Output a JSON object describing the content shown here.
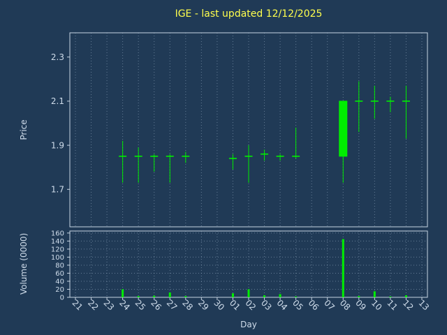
{
  "chart_data": {
    "type": "candlestick",
    "title": "IGE - last updated 12/12/2025",
    "xlabel": "Day",
    "ylabel_price": "Price",
    "ylabel_volume": "Volume (0000)",
    "categories": [
      "21",
      "22",
      "23",
      "24",
      "25",
      "26",
      "27",
      "28",
      "29",
      "30",
      "01",
      "02",
      "03",
      "04",
      "05",
      "06",
      "07",
      "08",
      "09",
      "10",
      "11",
      "12",
      "13"
    ],
    "price_ticks": [
      1.7,
      1.9,
      2.1,
      2.3
    ],
    "price_ylim": [
      1.53,
      2.41
    ],
    "volume_ticks": [
      0,
      20,
      40,
      60,
      80,
      100,
      120,
      140,
      160
    ],
    "volume_ylim": [
      0,
      165
    ],
    "grid": true,
    "legend": "none",
    "candles": [
      {
        "day": "24",
        "open": 1.85,
        "high": 1.92,
        "low": 1.73,
        "close": 1.85
      },
      {
        "day": "25",
        "open": 1.85,
        "high": 1.89,
        "low": 1.73,
        "close": 1.85
      },
      {
        "day": "26",
        "open": 1.85,
        "high": 1.86,
        "low": 1.78,
        "close": 1.85
      },
      {
        "day": "27",
        "open": 1.85,
        "high": 1.86,
        "low": 1.73,
        "close": 1.85
      },
      {
        "day": "28",
        "open": 1.85,
        "high": 1.87,
        "low": 1.82,
        "close": 1.85
      },
      {
        "day": "01",
        "open": 1.84,
        "high": 1.86,
        "low": 1.79,
        "close": 1.84
      },
      {
        "day": "02",
        "open": 1.85,
        "high": 1.9,
        "low": 1.73,
        "close": 1.85
      },
      {
        "day": "03",
        "open": 1.86,
        "high": 1.88,
        "low": 1.83,
        "close": 1.86
      },
      {
        "day": "04",
        "open": 1.85,
        "high": 1.86,
        "low": 1.83,
        "close": 1.85
      },
      {
        "day": "05",
        "open": 1.85,
        "high": 1.98,
        "low": 1.84,
        "close": 1.85
      },
      {
        "day": "08",
        "open": 1.85,
        "high": 2.1,
        "low": 1.73,
        "close": 2.1
      },
      {
        "day": "09",
        "open": 2.1,
        "high": 2.19,
        "low": 1.96,
        "close": 2.1
      },
      {
        "day": "10",
        "open": 2.1,
        "high": 2.17,
        "low": 2.02,
        "close": 2.1
      },
      {
        "day": "11",
        "open": 2.1,
        "high": 2.12,
        "low": 2.05,
        "close": 2.1
      },
      {
        "day": "12",
        "open": 2.1,
        "high": 2.17,
        "low": 1.93,
        "close": 2.1
      }
    ],
    "volumes": [
      0,
      0,
      0,
      20,
      3,
      4,
      12,
      3,
      0,
      0,
      10,
      20,
      5,
      8,
      2,
      0,
      0,
      145,
      3,
      15,
      2,
      5,
      0
    ],
    "colors": {
      "background": "#203a56",
      "candle_up": "#00ee00",
      "title": "#ffff4d",
      "axis_text": "#cfdcea",
      "spine": "#c6d4e2",
      "grid": "#9db3c9"
    }
  }
}
